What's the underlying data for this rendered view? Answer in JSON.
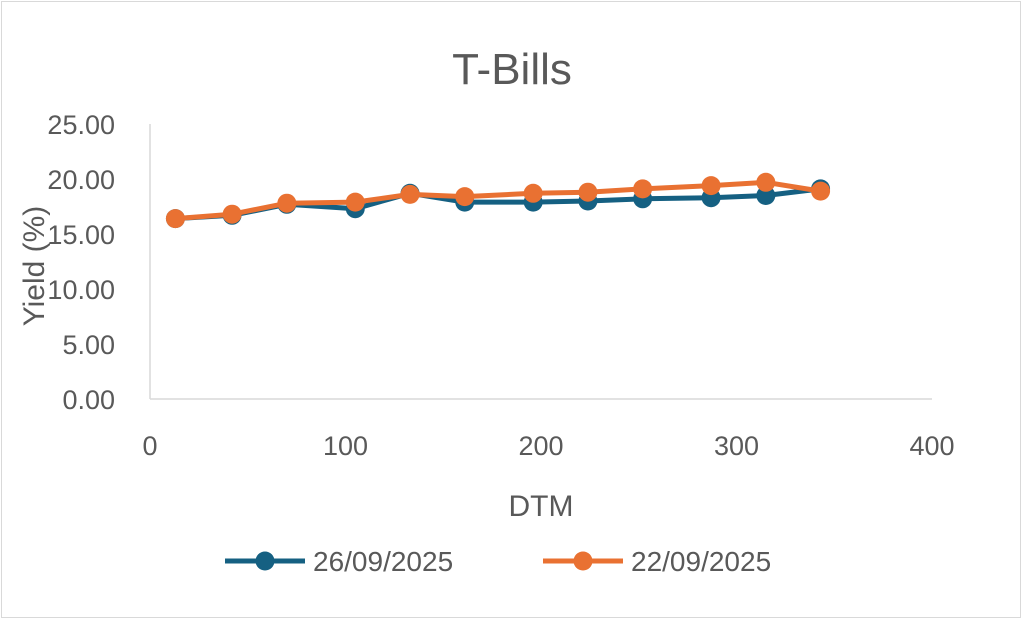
{
  "chart_data": {
    "type": "line",
    "title": "T-Bills",
    "xlabel": "DTM",
    "ylabel": "Yield (%)",
    "xlim": [
      0,
      400
    ],
    "ylim": [
      0,
      25
    ],
    "x_ticks": [
      "0",
      "100",
      "200",
      "300",
      "400"
    ],
    "y_ticks": [
      "0.00",
      "5.00",
      "10.00",
      "15.00",
      "20.00",
      "25.00"
    ],
    "legend_position": "bottom",
    "grid": false,
    "series": [
      {
        "name": "26/09/2025",
        "color": "#156082",
        "x": [
          13,
          42,
          70,
          105,
          133,
          161,
          196,
          224,
          252,
          287,
          315,
          343
        ],
        "y": [
          16.4,
          16.7,
          17.7,
          17.3,
          18.7,
          17.9,
          17.9,
          18.0,
          18.2,
          18.3,
          18.5,
          19.1
        ]
      },
      {
        "name": "22/09/2025",
        "color": "#E97132",
        "x": [
          13,
          42,
          70,
          105,
          133,
          161,
          196,
          224,
          252,
          287,
          315,
          343
        ],
        "y": [
          16.4,
          16.8,
          17.8,
          17.9,
          18.6,
          18.4,
          18.7,
          18.8,
          19.1,
          19.4,
          19.7,
          18.9
        ]
      }
    ]
  }
}
